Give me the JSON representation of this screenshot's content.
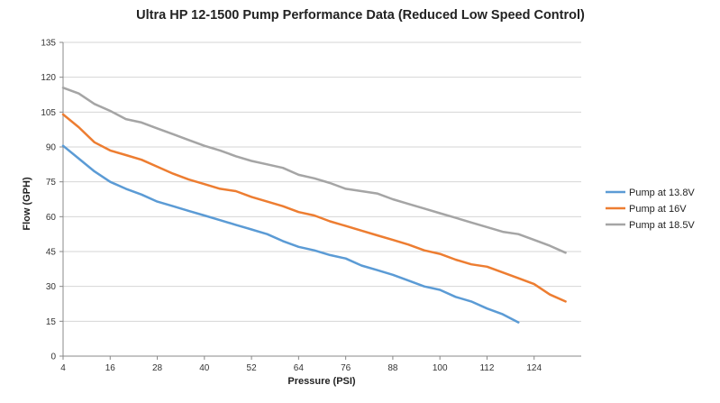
{
  "chart_data": {
    "type": "line",
    "title": "Ultra HP 12-1500 Pump Performance Data (Reduced Low Speed  Control)",
    "xlabel": "Pressure (PSI)",
    "ylabel": "Flow (GPH)",
    "xlim": [
      4,
      136
    ],
    "ylim": [
      0,
      135
    ],
    "x_ticks": [
      4,
      16,
      28,
      40,
      52,
      64,
      76,
      88,
      100,
      112,
      124
    ],
    "y_ticks": [
      0,
      15,
      30,
      45,
      60,
      75,
      90,
      105,
      120,
      135
    ],
    "grid": "horizontal",
    "legend_position": "right",
    "series": [
      {
        "name": "Pump at 13.8V",
        "color": "#5b9bd5",
        "points": [
          [
            4,
            90.5
          ],
          [
            8,
            85
          ],
          [
            12,
            79.5
          ],
          [
            16,
            75
          ],
          [
            20,
            72
          ],
          [
            24,
            69.5
          ],
          [
            28,
            66.5
          ],
          [
            32,
            64.5
          ],
          [
            36,
            62.5
          ],
          [
            40,
            60.5
          ],
          [
            44,
            58.5
          ],
          [
            48,
            56.5
          ],
          [
            52,
            54.5
          ],
          [
            56,
            52.5
          ],
          [
            60,
            49.5
          ],
          [
            64,
            47
          ],
          [
            68,
            45.5
          ],
          [
            72,
            43.5
          ],
          [
            76,
            42
          ],
          [
            80,
            39
          ],
          [
            84,
            37
          ],
          [
            88,
            35
          ],
          [
            92,
            32.5
          ],
          [
            96,
            30
          ],
          [
            100,
            28.5
          ],
          [
            104,
            25.5
          ],
          [
            108,
            23.5
          ],
          [
            112,
            20.5
          ],
          [
            116,
            18
          ],
          [
            120,
            14.5
          ]
        ]
      },
      {
        "name": "Pump at 16V",
        "color": "#ed7d31",
        "points": [
          [
            4,
            104
          ],
          [
            8,
            98.5
          ],
          [
            12,
            92
          ],
          [
            16,
            88.5
          ],
          [
            20,
            86.5
          ],
          [
            24,
            84.5
          ],
          [
            28,
            81.5
          ],
          [
            32,
            78.5
          ],
          [
            36,
            76
          ],
          [
            40,
            74
          ],
          [
            44,
            72
          ],
          [
            48,
            71
          ],
          [
            52,
            68.5
          ],
          [
            56,
            66.5
          ],
          [
            60,
            64.5
          ],
          [
            64,
            62
          ],
          [
            68,
            60.5
          ],
          [
            72,
            58
          ],
          [
            76,
            56
          ],
          [
            80,
            54
          ],
          [
            84,
            52
          ],
          [
            88,
            50
          ],
          [
            92,
            48
          ],
          [
            96,
            45.5
          ],
          [
            100,
            44
          ],
          [
            104,
            41.5
          ],
          [
            108,
            39.5
          ],
          [
            112,
            38.5
          ],
          [
            116,
            36
          ],
          [
            120,
            33.5
          ],
          [
            124,
            31
          ],
          [
            128,
            26.5
          ],
          [
            132,
            23.5
          ]
        ]
      },
      {
        "name": "Pump at 18.5V",
        "color": "#a5a5a5",
        "points": [
          [
            4,
            115.5
          ],
          [
            8,
            113
          ],
          [
            12,
            108.5
          ],
          [
            16,
            105.5
          ],
          [
            20,
            102
          ],
          [
            24,
            100.5
          ],
          [
            28,
            98
          ],
          [
            32,
            95.5
          ],
          [
            36,
            93
          ],
          [
            40,
            90.5
          ],
          [
            44,
            88.5
          ],
          [
            48,
            86
          ],
          [
            52,
            84
          ],
          [
            56,
            82.5
          ],
          [
            60,
            81
          ],
          [
            64,
            78
          ],
          [
            68,
            76.5
          ],
          [
            72,
            74.5
          ],
          [
            76,
            72
          ],
          [
            80,
            71
          ],
          [
            84,
            70
          ],
          [
            88,
            67.5
          ],
          [
            92,
            65.5
          ],
          [
            96,
            63.5
          ],
          [
            100,
            61.5
          ],
          [
            104,
            59.5
          ],
          [
            108,
            57.5
          ],
          [
            112,
            55.5
          ],
          [
            116,
            53.5
          ],
          [
            120,
            52.5
          ],
          [
            124,
            50
          ],
          [
            128,
            47.5
          ],
          [
            132,
            44.5
          ]
        ]
      }
    ]
  }
}
